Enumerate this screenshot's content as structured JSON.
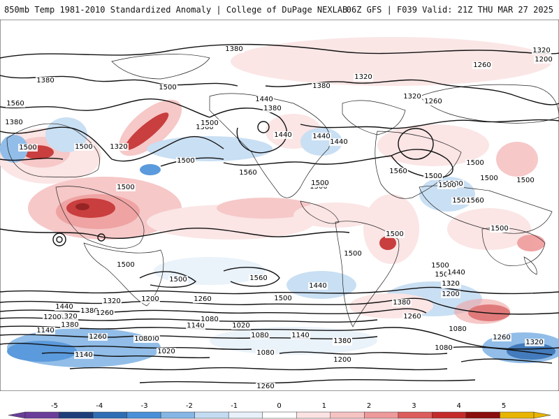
{
  "header": {
    "left": "850mb Temp 1981-2010 Standardized Anomaly | College of DuPage NEXLAB",
    "right": "06Z GFS | F039 Valid: 21Z THU MAR 27 2025"
  },
  "colorbar": {
    "ticks": [
      "-5",
      "-4",
      "-3",
      "-2",
      "-1",
      "0",
      "1",
      "2",
      "3",
      "4",
      "5"
    ],
    "colors": [
      "#6a3d9a",
      "#1f3d7a",
      "#2f6db5",
      "#4a90d9",
      "#86b6e6",
      "#c4dcf2",
      "#e8f1fa",
      "#ffffff",
      "#fbe3e3",
      "#f6c3c3",
      "#ee9a9a",
      "#dd5c5c",
      "#c42a2a",
      "#8b0d0d",
      "#e8b400"
    ]
  },
  "contour_labels": [
    "1380",
    "1320",
    "1260",
    "1200",
    "1320",
    "1380",
    "1380",
    "1320",
    "1560",
    "1440",
    "1500",
    "1380",
    "1440",
    "1560",
    "1320",
    "1440",
    "1260",
    "1500",
    "1380",
    "1500",
    "1500",
    "1500",
    "1440",
    "1560",
    "1500",
    "1500",
    "1560",
    "1500",
    "1500",
    "1500",
    "1500",
    "1500",
    "1500",
    "1500",
    "1560",
    "1500",
    "1500",
    "1500",
    "1500",
    "1500",
    "1500",
    "1500",
    "1500",
    "1560",
    "1500",
    "1440",
    "1500",
    "1500",
    "1500",
    "1440",
    "1380",
    "1320",
    "1260",
    "1200",
    "1080",
    "1200",
    "1260",
    "1320",
    "1380",
    "1440",
    "1380",
    "1320",
    "1260",
    "1200",
    "1140",
    "1260",
    "1200",
    "1140",
    "1080",
    "1020",
    "1080",
    "1140",
    "1200",
    "1080",
    "1260",
    "1380",
    "1320",
    "1140",
    "1080",
    "1020",
    "1080",
    "1200",
    "1260"
  ],
  "map_icons": {
    "legend_left_arrow": "arrow-left-icon",
    "legend_right_arrow": "arrow-right-icon"
  }
}
